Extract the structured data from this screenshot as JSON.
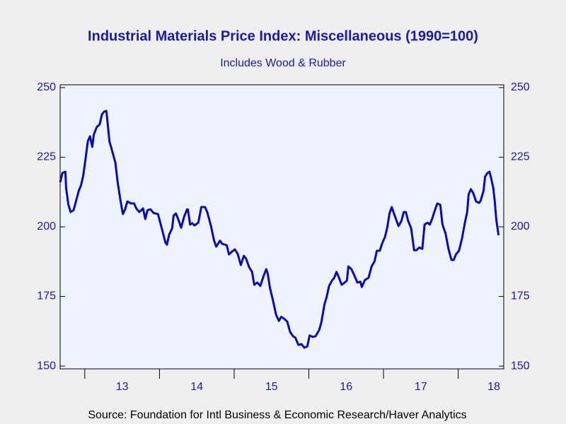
{
  "chart_data": {
    "type": "line",
    "title": "Industrial Materials Price Index: Miscellaneous (1990=100)",
    "subtitle": "Includes Wood & Rubber",
    "source": "Source:  Foundation for Intl Business & Economic Research/Haver Analytics",
    "color": "#0a0ab4",
    "xlim": [
      12.67,
      18.61
    ],
    "xticks": [
      13,
      14,
      15,
      16,
      17,
      18
    ],
    "ylim": [
      149,
      251
    ],
    "yticks": [
      150,
      175,
      200,
      225,
      250
    ],
    "x": [
      12.67,
      12.7,
      12.74,
      12.75,
      12.78,
      12.81,
      12.85,
      12.88,
      12.92,
      12.95,
      12.98,
      13.01,
      13.04,
      13.07,
      13.1,
      13.12,
      13.16,
      13.2,
      13.23,
      13.26,
      13.29,
      13.3,
      13.33,
      13.38,
      13.41,
      13.44,
      13.48,
      13.51,
      13.54,
      13.57,
      13.62,
      13.66,
      13.69,
      13.73,
      13.78,
      13.81,
      13.84,
      13.88,
      13.92,
      13.98,
      14.03,
      14.08,
      14.1,
      14.13,
      14.17,
      14.19,
      14.22,
      14.25,
      14.29,
      14.33,
      14.37,
      14.38,
      14.41,
      14.44,
      14.47,
      14.52,
      14.56,
      14.61,
      14.64,
      14.69,
      14.73,
      14.76,
      14.81,
      14.84,
      14.9,
      14.93,
      14.97,
      15.01,
      15.05,
      15.09,
      15.13,
      15.16,
      15.2,
      15.24,
      15.27,
      15.31,
      15.35,
      15.39,
      15.43,
      15.45,
      15.48,
      15.52,
      15.56,
      15.6,
      15.63,
      15.67,
      15.71,
      15.75,
      15.79,
      15.82,
      15.86,
      15.9,
      15.94,
      15.98,
      16.01,
      16.05,
      16.09,
      16.14,
      16.17,
      16.21,
      16.24,
      16.27,
      16.31,
      16.34,
      16.37,
      16.4,
      16.44,
      16.48,
      16.51,
      16.53,
      16.57,
      16.61,
      16.65,
      16.69,
      16.71,
      16.75,
      16.8,
      16.84,
      16.88,
      16.91,
      16.95,
      16.98,
      17.02,
      17.05,
      17.08,
      17.11,
      17.15,
      17.2,
      17.24,
      17.27,
      17.3,
      17.33,
      17.37,
      17.41,
      17.44,
      17.48,
      17.52,
      17.55,
      17.59,
      17.62,
      17.65,
      17.68,
      17.72,
      17.76,
      17.79,
      17.83,
      17.87,
      17.91,
      17.94,
      17.97,
      18.01,
      18.05,
      18.09,
      18.12,
      18.14,
      18.17,
      18.2,
      18.24,
      18.28,
      18.3,
      18.34,
      18.36,
      18.39,
      18.42,
      18.44,
      18.47,
      18.49,
      18.51,
      18.54
    ],
    "values": [
      216,
      219.3,
      219.8,
      214,
      208,
      205.3,
      206,
      209,
      213,
      215,
      218.5,
      224.4,
      230.7,
      232.5,
      228.7,
      233,
      235.8,
      236.8,
      240.4,
      241.4,
      241.6,
      238.8,
      230.7,
      226,
      223,
      216,
      209.1,
      204.6,
      206.3,
      209.1,
      208.4,
      208.4,
      206.6,
      205.3,
      206.6,
      202.8,
      206,
      206.3,
      205,
      204.6,
      199.5,
      194.4,
      193.6,
      197.2,
      199.5,
      204,
      204.8,
      202.8,
      199.7,
      203.6,
      206.3,
      206.3,
      200.8,
      201.3,
      200.5,
      201.5,
      207.1,
      207.1,
      205.3,
      200.3,
      195.2,
      192.9,
      195,
      193.9,
      193.4,
      190.1,
      191.1,
      191.9,
      190.1,
      186.3,
      189.6,
      188.6,
      185.5,
      183.8,
      179.2,
      180,
      178.8,
      182,
      184.8,
      183.2,
      178,
      173.6,
      168.5,
      166.2,
      167.7,
      167,
      166,
      162.2,
      160.7,
      160.2,
      157.6,
      157.9,
      156.6,
      157.1,
      161,
      160.5,
      160.7,
      163,
      166,
      172.3,
      174.9,
      178.7,
      180.7,
      181.7,
      183.8,
      182,
      179.2,
      180,
      180.7,
      185.8,
      184.8,
      182.5,
      180,
      180.3,
      178.4,
      180.9,
      181.7,
      185.8,
      187.6,
      191.4,
      191.4,
      193.9,
      196.4,
      199.7,
      204.8,
      207.1,
      204,
      200.3,
      202.1,
      205.3,
      205.3,
      202.1,
      199.5,
      191.6,
      191.6,
      192.6,
      192.1,
      200.8,
      201.5,
      200.8,
      202.8,
      205.3,
      208.4,
      207.9,
      200.8,
      197.7,
      192.1,
      188.1,
      188.1,
      190.1,
      191.4,
      195.7,
      201.5,
      205.3,
      211.7,
      213.5,
      212.2,
      209.1,
      208.6,
      209.4,
      213,
      218,
      219.3,
      219.8,
      217.5,
      214,
      209.1,
      202.8,
      197
    ]
  }
}
